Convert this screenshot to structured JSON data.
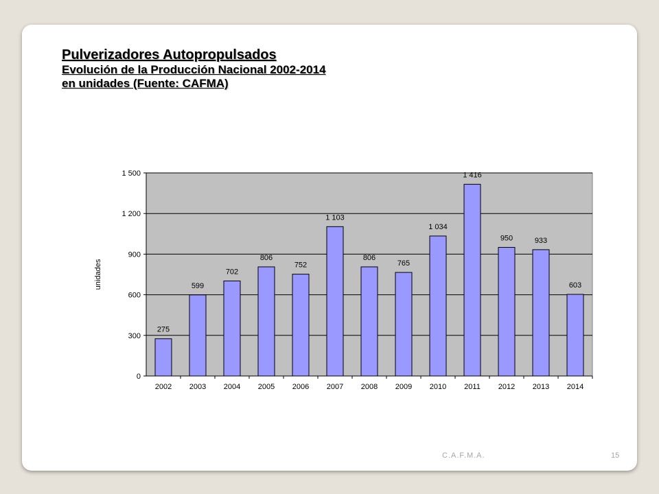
{
  "slide": {
    "title": "Pulverizadores Autopropulsados",
    "subtitle": "Evolución de la Producción Nacional 2002-2014",
    "subtitle2": "en unidades (Fuente: CAFMA)",
    "footer_org": "C.A.F.M.A.",
    "page_number": "15"
  },
  "colors": {
    "bar_fill": "#9999ff",
    "plot_background": "#c0c0c0",
    "gridline": "#000000"
  },
  "chart_data": {
    "type": "bar",
    "title": "",
    "xlabel": "",
    "ylabel": "unidades",
    "categories": [
      "2002",
      "2003",
      "2004",
      "2005",
      "2006",
      "2007",
      "2008",
      "2009",
      "2010",
      "2011",
      "2012",
      "2013",
      "2014"
    ],
    "values": [
      275,
      599,
      702,
      806,
      752,
      1103,
      806,
      765,
      1034,
      1416,
      950,
      933,
      603
    ],
    "data_labels": [
      "275",
      "599",
      "702",
      "806",
      "752",
      "1 103",
      "806",
      "765",
      "1 034",
      "1 416",
      "950",
      "933",
      "603"
    ],
    "ylim": [
      0,
      1500
    ],
    "yticks": [
      0,
      300,
      600,
      900,
      1200,
      1500
    ],
    "ytick_labels": [
      "0",
      "300",
      "600",
      "900",
      "1 200",
      "1 500"
    ],
    "grid": true,
    "legend": "none"
  }
}
